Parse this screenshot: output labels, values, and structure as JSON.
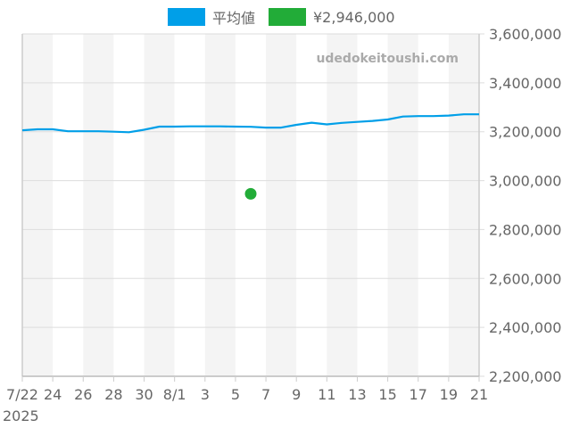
{
  "legend": {
    "items": [
      {
        "label": "平均値",
        "color": "#009fe8"
      },
      {
        "label": "¥2,946,000",
        "color": "#22ac38"
      }
    ]
  },
  "watermark": "udedokeitoushi.com",
  "y_axis": {
    "ticks": [
      "3,600,000",
      "3,400,000",
      "3,200,000",
      "3,000,000",
      "2,800,000",
      "2,600,000",
      "2,400,000",
      "2,200,000"
    ]
  },
  "x_axis": {
    "ticks": [
      "7/22",
      "24",
      "26",
      "28",
      "30",
      "8/1",
      "3",
      "5",
      "7",
      "9",
      "11",
      "13",
      "15",
      "17",
      "19",
      "21"
    ],
    "year_label": "2025"
  },
  "chart_data": {
    "type": "line",
    "title": "",
    "xlabel": "",
    "ylabel": "",
    "ylim": [
      2200000,
      3600000
    ],
    "y_ticks": [
      2200000,
      2400000,
      2600000,
      2800000,
      3000000,
      3200000,
      3400000,
      3600000
    ],
    "x_tick_labels": [
      "7/22",
      "24",
      "26",
      "28",
      "30",
      "8/1",
      "3",
      "5",
      "7",
      "9",
      "11",
      "13",
      "15",
      "17",
      "19",
      "21"
    ],
    "x_range": [
      "2025-07-22",
      "2025-08-21"
    ],
    "grid": true,
    "legend_position": "top",
    "series": [
      {
        "name": "平均値",
        "color": "#009fe8",
        "type": "line",
        "x": [
          "7/22",
          "7/23",
          "7/24",
          "7/25",
          "7/26",
          "7/27",
          "7/28",
          "7/29",
          "7/30",
          "7/31",
          "8/1",
          "8/2",
          "8/3",
          "8/4",
          "8/5",
          "8/6",
          "8/7",
          "8/8",
          "8/9",
          "8/10",
          "8/11",
          "8/12",
          "8/13",
          "8/14",
          "8/15",
          "8/16",
          "8/17",
          "8/18",
          "8/19",
          "8/20",
          "8/21"
        ],
        "values": [
          3206000,
          3210000,
          3210000,
          3202000,
          3202000,
          3202000,
          3200000,
          3198000,
          3208000,
          3221000,
          3221000,
          3222000,
          3222000,
          3222000,
          3221000,
          3220000,
          3217000,
          3217000,
          3228000,
          3237000,
          3230000,
          3236000,
          3240000,
          3244000,
          3250000,
          3262000,
          3264000,
          3264000,
          3266000,
          3271000,
          3271000
        ]
      },
      {
        "name": "¥2,946,000",
        "color": "#22ac38",
        "type": "scatter",
        "x": [
          "8/6"
        ],
        "values": [
          2946000
        ]
      }
    ]
  }
}
